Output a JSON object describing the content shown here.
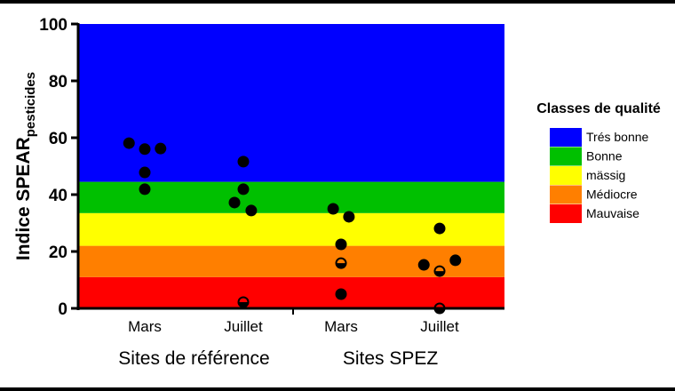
{
  "chart_data": {
    "type": "scatter",
    "ylabel": "Indice SPEAR",
    "ylabel_sub": "pesticides",
    "ylim": [
      0,
      100
    ],
    "yticks": [
      "0",
      "20",
      "40",
      "60",
      "80",
      "100"
    ],
    "categories": [
      "Mars",
      "Juillet",
      "Mars",
      "Juillet"
    ],
    "groups": [
      {
        "label": "Sites de référence",
        "categories": [
          0,
          1
        ]
      },
      {
        "label": "Sites SPEZ",
        "categories": [
          2,
          3
        ]
      }
    ],
    "bands": [
      {
        "name": "Mauvaise",
        "from": 0,
        "to": 11,
        "color": "#ff0000"
      },
      {
        "name": "Médiocre",
        "from": 11,
        "to": 22,
        "color": "#ff7f00"
      },
      {
        "name": "mässig",
        "from": 22,
        "to": 33.5,
        "color": "#ffff00"
      },
      {
        "name": "Bonne",
        "from": 33.5,
        "to": 44.5,
        "color": "#00c000"
      },
      {
        "name": "Trés bonne",
        "from": 44.5,
        "to": 100,
        "color": "#0000ff"
      }
    ],
    "legend_title": "Classes de qualité",
    "legend_position": "right",
    "points": [
      {
        "cat": 0,
        "jitter": -0.16,
        "y": 58.1
      },
      {
        "cat": 0,
        "jitter": 0,
        "y": 56
      },
      {
        "cat": 0,
        "jitter": 0.16,
        "y": 56.2
      },
      {
        "cat": 0,
        "jitter": 0,
        "y": 47.8
      },
      {
        "cat": 0,
        "jitter": 0,
        "y": 41.9
      },
      {
        "cat": 1,
        "jitter": 0,
        "y": 51.6
      },
      {
        "cat": 1,
        "jitter": 0,
        "y": 41.9
      },
      {
        "cat": 1,
        "jitter": -0.09,
        "y": 37.2
      },
      {
        "cat": 1,
        "jitter": 0.08,
        "y": 34.4
      },
      {
        "cat": 1,
        "jitter": 0,
        "y": 2.2,
        "half": true
      },
      {
        "cat": 2,
        "jitter": -0.08,
        "y": 35
      },
      {
        "cat": 2,
        "jitter": 0.08,
        "y": 32.2
      },
      {
        "cat": 2,
        "jitter": 0,
        "y": 22.5
      },
      {
        "cat": 2,
        "jitter": 0,
        "y": 15.9,
        "half": true
      },
      {
        "cat": 2,
        "jitter": 0,
        "y": 5
      },
      {
        "cat": 3,
        "jitter": 0,
        "y": 28.1
      },
      {
        "cat": 3,
        "jitter": -0.16,
        "y": 15.3
      },
      {
        "cat": 3,
        "jitter": 0.16,
        "y": 16.9
      },
      {
        "cat": 3,
        "jitter": 0,
        "y": 13.1,
        "half": true
      },
      {
        "cat": 3,
        "jitter": 0,
        "y": 0,
        "half": true
      }
    ]
  }
}
